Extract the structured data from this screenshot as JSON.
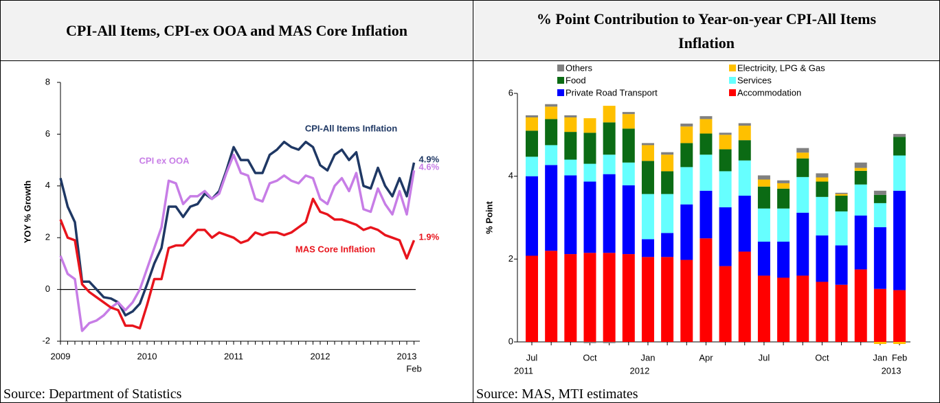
{
  "chart_data": [
    {
      "type": "line",
      "title": "CPI-All Items, CPI-ex OOA and MAS Core Inflation",
      "source": "Source: Department of Statistics",
      "y_label": "YOY % Growth",
      "categories": [
        "2009",
        null,
        null,
        null,
        null,
        null,
        null,
        null,
        null,
        null,
        null,
        null,
        "2010",
        null,
        null,
        null,
        null,
        null,
        null,
        null,
        null,
        null,
        null,
        null,
        "2011",
        null,
        null,
        null,
        null,
        null,
        null,
        null,
        null,
        null,
        null,
        null,
        "2012",
        null,
        null,
        null,
        null,
        null,
        null,
        null,
        null,
        null,
        null,
        null,
        "2013",
        null
      ],
      "x_sublabels": [
        null,
        null,
        null,
        null,
        null,
        null,
        null,
        null,
        null,
        null,
        null,
        null,
        null,
        null,
        null,
        null,
        null,
        null,
        null,
        null,
        null,
        null,
        null,
        null,
        null,
        null,
        null,
        null,
        null,
        null,
        null,
        null,
        null,
        null,
        null,
        null,
        null,
        null,
        null,
        null,
        null,
        null,
        null,
        null,
        null,
        null,
        null,
        null,
        null,
        "Feb"
      ],
      "ylim": [
        -2,
        8
      ],
      "yticks": [
        -2,
        0,
        2,
        4,
        6,
        8
      ],
      "zero_line": true,
      "series": [
        {
          "name": "CPI-All Items Inflation",
          "color": "#1f3864",
          "values": [
            4.3,
            3.2,
            2.6,
            0.3,
            0.3,
            0.0,
            -0.3,
            -0.35,
            -0.5,
            -1.0,
            -0.85,
            -0.55,
            0.2,
            1.0,
            1.6,
            3.2,
            3.2,
            2.8,
            3.2,
            3.3,
            3.7,
            3.5,
            3.8,
            4.6,
            5.5,
            5.0,
            5.0,
            4.5,
            4.5,
            5.2,
            5.4,
            5.7,
            5.5,
            5.4,
            5.7,
            5.5,
            4.8,
            4.6,
            5.2,
            5.4,
            5.0,
            5.3,
            4.0,
            3.9,
            4.7,
            4.0,
            3.6,
            4.3,
            3.6,
            4.9
          ],
          "value_labels": [
            null,
            null,
            null,
            null,
            null,
            null,
            null,
            null,
            null,
            null,
            null,
            null,
            null,
            null,
            null,
            null,
            null,
            null,
            null,
            null,
            null,
            null,
            null,
            null,
            null,
            null,
            null,
            null,
            null,
            null,
            null,
            null,
            null,
            null,
            null,
            null,
            null,
            null,
            null,
            null,
            null,
            null,
            null,
            null,
            null,
            null,
            null,
            null,
            null,
            "4.9%"
          ]
        },
        {
          "name": "CPI ex OOA",
          "color": "#c77de6",
          "values": [
            1.3,
            0.6,
            0.4,
            -1.6,
            -1.3,
            -1.2,
            -1.0,
            -0.7,
            -0.5,
            -0.8,
            -0.5,
            0.0,
            0.8,
            1.6,
            2.4,
            4.2,
            4.1,
            3.3,
            3.6,
            3.6,
            3.8,
            3.5,
            3.7,
            4.5,
            5.2,
            4.5,
            4.4,
            3.5,
            3.4,
            4.1,
            4.2,
            4.4,
            4.2,
            4.1,
            4.4,
            4.3,
            3.5,
            3.3,
            4.0,
            4.3,
            3.8,
            4.5,
            3.1,
            3.0,
            3.9,
            3.3,
            2.9,
            3.8,
            2.9,
            4.6
          ],
          "value_labels": [
            null,
            null,
            null,
            null,
            null,
            null,
            null,
            null,
            null,
            null,
            null,
            null,
            null,
            null,
            null,
            null,
            null,
            null,
            null,
            null,
            null,
            null,
            null,
            null,
            null,
            null,
            null,
            null,
            null,
            null,
            null,
            null,
            null,
            null,
            null,
            null,
            null,
            null,
            null,
            null,
            null,
            null,
            null,
            null,
            null,
            null,
            null,
            null,
            null,
            "4.6%"
          ]
        },
        {
          "name": "MAS Core Inflation",
          "color": "#e8141c",
          "values": [
            2.7,
            2.0,
            1.9,
            0.2,
            -0.1,
            -0.3,
            -0.5,
            -0.7,
            -0.8,
            -1.4,
            -1.4,
            -1.5,
            -0.6,
            0.4,
            0.4,
            1.6,
            1.7,
            1.7,
            2.0,
            2.3,
            2.3,
            2.0,
            2.2,
            2.1,
            2.0,
            1.8,
            1.9,
            2.2,
            2.1,
            2.2,
            2.2,
            2.1,
            2.2,
            2.4,
            2.6,
            3.5,
            3.0,
            2.9,
            2.7,
            2.7,
            2.6,
            2.5,
            2.3,
            2.4,
            2.3,
            2.1,
            2.0,
            1.9,
            1.2,
            1.9
          ],
          "value_labels": [
            null,
            null,
            null,
            null,
            null,
            null,
            null,
            null,
            null,
            null,
            null,
            null,
            null,
            null,
            null,
            null,
            null,
            null,
            null,
            null,
            null,
            null,
            null,
            null,
            null,
            null,
            null,
            null,
            null,
            null,
            null,
            null,
            null,
            null,
            null,
            null,
            null,
            null,
            null,
            null,
            null,
            null,
            null,
            null,
            null,
            null,
            null,
            null,
            null,
            "1.9%"
          ]
        }
      ]
    },
    {
      "type": "stacked_bar",
      "title": "% Point Contribution to Year-on-year CPI-All Items Inflation",
      "source": "Source: MAS, MTI estimates",
      "y_label": "% Point",
      "categories": [
        "Jul",
        null,
        null,
        "Oct",
        null,
        null,
        "Jan",
        null,
        null,
        "Apr",
        null,
        null,
        "Jul",
        null,
        null,
        "Oct",
        null,
        null,
        "Jan",
        "Feb"
      ],
      "x_sublabels": [
        "2011",
        null,
        null,
        null,
        null,
        null,
        "2012",
        null,
        null,
        null,
        null,
        null,
        null,
        null,
        null,
        null,
        null,
        null,
        null,
        "2013"
      ],
      "ylim": [
        0,
        6
      ],
      "yticks": [
        0,
        2,
        4,
        6
      ],
      "series": [
        {
          "name": "Accommodation",
          "color": "#ff0000",
          "values": [
            2.08,
            2.2,
            2.12,
            2.15,
            2.15,
            2.12,
            2.05,
            2.05,
            1.98,
            2.5,
            1.83,
            2.18,
            1.6,
            1.55,
            1.6,
            1.45,
            1.38,
            1.75,
            1.28,
            1.25
          ]
        },
        {
          "name": "Private Road Transport",
          "color": "#0000ff",
          "values": [
            1.92,
            2.07,
            1.9,
            1.72,
            1.9,
            1.66,
            0.43,
            0.58,
            1.34,
            1.15,
            1.42,
            1.35,
            0.82,
            0.87,
            1.52,
            1.12,
            0.95,
            1.3,
            1.49,
            2.4
          ]
        },
        {
          "name": "Services",
          "color": "#66ffff",
          "values": [
            0.47,
            0.48,
            0.38,
            0.43,
            0.47,
            0.55,
            1.09,
            0.94,
            0.9,
            0.87,
            0.87,
            0.85,
            0.8,
            0.8,
            0.86,
            0.93,
            0.82,
            0.75,
            0.58,
            0.85
          ]
        },
        {
          "name": "Food",
          "color": "#0b6b14",
          "values": [
            0.63,
            0.63,
            0.67,
            0.75,
            0.78,
            0.82,
            0.8,
            0.55,
            0.58,
            0.51,
            0.53,
            0.49,
            0.53,
            0.48,
            0.45,
            0.37,
            0.38,
            0.33,
            0.2,
            0.45
          ]
        },
        {
          "name": "Electricity, LPG & Gas",
          "color": "#ffc000",
          "values": [
            0.32,
            0.3,
            0.35,
            0.35,
            0.4,
            0.35,
            0.38,
            0.4,
            0.4,
            0.35,
            0.35,
            0.35,
            0.17,
            0.13,
            0.14,
            0.1,
            0.04,
            0.07,
            -0.05,
            -0.05
          ]
        },
        {
          "name": "Others",
          "color": "#808080",
          "values": [
            0.05,
            0.06,
            0.05,
            -0.03,
            -0.03,
            0.05,
            0.05,
            0.06,
            0.07,
            0.07,
            0.05,
            0.06,
            0.1,
            0.07,
            0.11,
            0.1,
            0.03,
            0.13,
            0.1,
            0.07
          ]
        }
      ]
    }
  ]
}
